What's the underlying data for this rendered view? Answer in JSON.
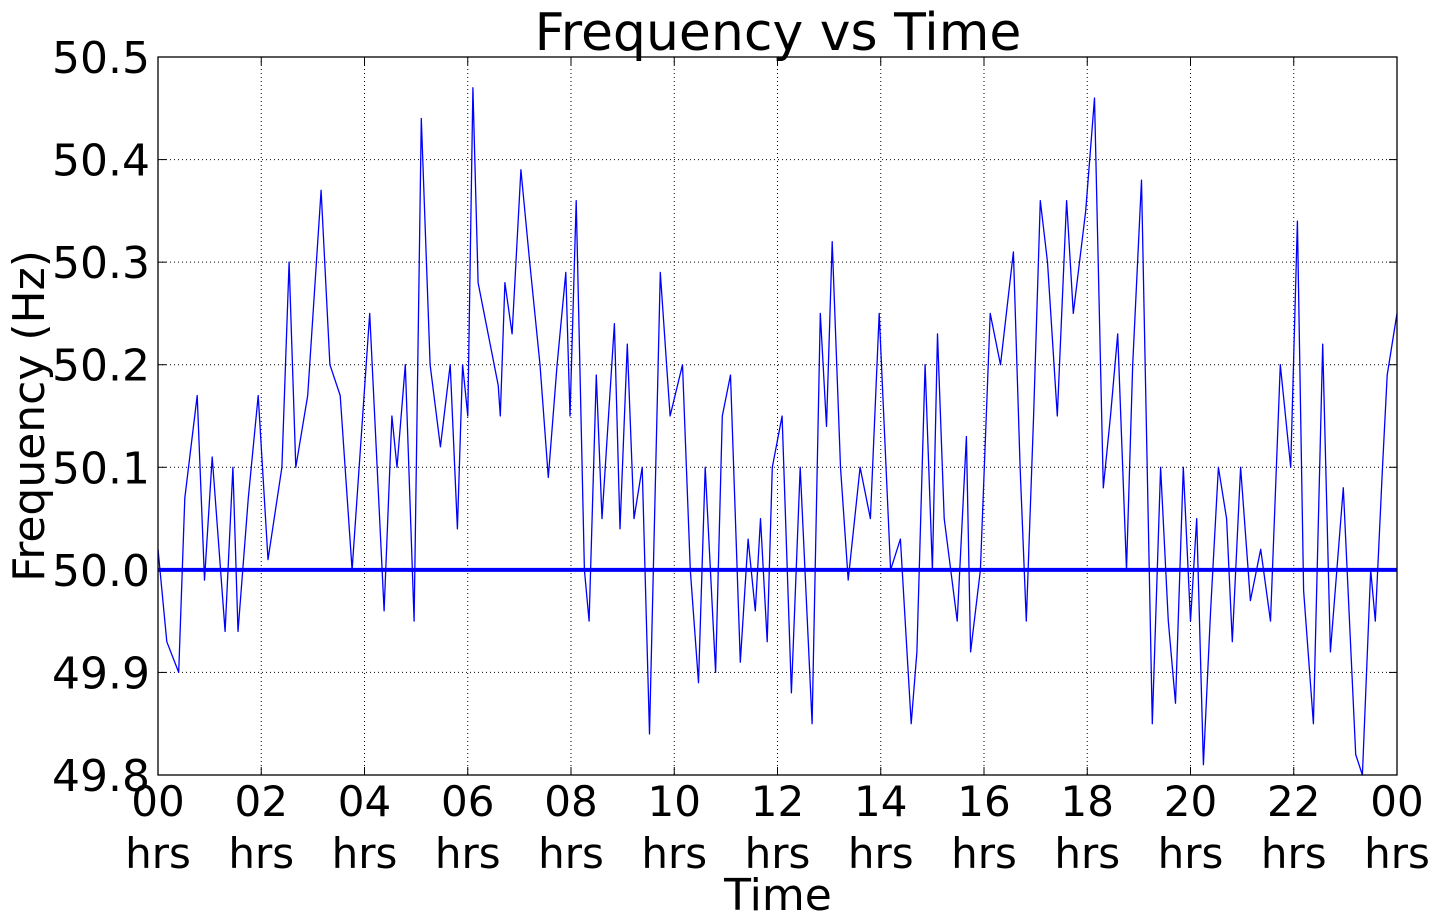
{
  "chart_data": {
    "type": "line",
    "title": "Frequency vs Time",
    "x_label": "Time",
    "y_label": "Frequency (Hz)",
    "color": "#0000ff",
    "grid": true,
    "reference_line": {
      "value": 50,
      "color": "#0000ff"
    },
    "xlim": [
      0,
      24
    ],
    "xticks": [
      {
        "value": 0,
        "label": "00 hrs"
      },
      {
        "value": 2,
        "label": "02 hrs"
      },
      {
        "value": 4,
        "label": "04 hrs"
      },
      {
        "value": 6,
        "label": "06 hrs"
      },
      {
        "value": 8,
        "label": "08 hrs"
      },
      {
        "value": 10,
        "label": "10 hrs"
      },
      {
        "value": 12,
        "label": "12 hrs"
      },
      {
        "value": 14,
        "label": "14 hrs"
      },
      {
        "value": 16,
        "label": "16 hrs"
      },
      {
        "value": 18,
        "label": "18 hrs"
      },
      {
        "value": 20,
        "label": "20 hrs"
      },
      {
        "value": 22,
        "label": "22 hrs"
      },
      {
        "value": 24,
        "label": "00 hrs"
      }
    ],
    "ylim": [
      49.8,
      50.5
    ],
    "yticks": [
      49.8,
      49.9,
      {
        "value": 50,
        "label": "50.0"
      },
      50.1,
      50.2,
      50.3,
      50.4,
      50.5
    ],
    "x": [
      0,
      0.17,
      0.4,
      0.52,
      0.76,
      0.9,
      1.05,
      1.3,
      1.45,
      1.55,
      1.75,
      1.94,
      2.13,
      2.4,
      2.54,
      2.67,
      2.9,
      3.16,
      3.33,
      3.53,
      3.76,
      4.1,
      4.38,
      4.53,
      4.63,
      4.79,
      4.96,
      5.1,
      5.27,
      5.47,
      5.66,
      5.8,
      5.9,
      6.0,
      6.1,
      6.2,
      6.59,
      6.63,
      6.72,
      6.86,
      7.03,
      7.2,
      7.4,
      7.56,
      7.73,
      7.9,
      7.98,
      8.1,
      8.26,
      8.35,
      8.49,
      8.6,
      8.84,
      8.95,
      9.09,
      9.22,
      9.38,
      9.52,
      9.73,
      9.92,
      10.16,
      10.31,
      10.47,
      10.6,
      10.8,
      10.93,
      11.09,
      11.28,
      11.43,
      11.57,
      11.67,
      11.8,
      11.9,
      12.09,
      12.27,
      12.44,
      12.67,
      12.83,
      12.95,
      13.06,
      13.22,
      13.37,
      13.6,
      13.8,
      13.97,
      14.19,
      14.38,
      14.59,
      14.7,
      14.86,
      15.0,
      15.1,
      15.23,
      15.48,
      15.66,
      15.74,
      15.93,
      16.12,
      16.32,
      16.57,
      16.7,
      16.82,
      16.96,
      17.09,
      17.23,
      17.42,
      17.6,
      17.73,
      17.97,
      18.14,
      18.31,
      18.45,
      18.59,
      18.76,
      18.88,
      19.05,
      19.26,
      19.42,
      19.57,
      19.71,
      19.86,
      20.0,
      20.12,
      20.25,
      20.39,
      20.54,
      20.7,
      20.81,
      20.97,
      21.16,
      21.36,
      21.55,
      21.74,
      21.94,
      22.07,
      22.19,
      22.38,
      22.56,
      22.71,
      22.96,
      23.2,
      23.33,
      23.49,
      23.58,
      23.72,
      23.81,
      24.0
    ],
    "values": [
      50.02,
      49.93,
      49.9,
      50.07,
      50.17,
      49.99,
      50.11,
      49.94,
      50.1,
      49.94,
      50.07,
      50.17,
      50.01,
      50.1,
      50.3,
      50.1,
      50.17,
      50.37,
      50.2,
      50.17,
      50.0,
      50.25,
      49.96,
      50.15,
      50.1,
      50.2,
      49.95,
      50.44,
      50.2,
      50.12,
      50.2,
      50.04,
      50.2,
      50.15,
      50.47,
      50.28,
      50.18,
      50.15,
      50.28,
      50.23,
      50.39,
      50.3,
      50.2,
      50.09,
      50.2,
      50.29,
      50.15,
      50.36,
      50.0,
      49.95,
      50.19,
      50.05,
      50.24,
      50.04,
      50.22,
      50.05,
      50.1,
      49.84,
      50.29,
      50.15,
      50.2,
      50.0,
      49.89,
      50.1,
      49.9,
      50.15,
      50.19,
      49.91,
      50.03,
      49.96,
      50.05,
      49.93,
      50.1,
      50.15,
      49.88,
      50.1,
      49.85,
      50.25,
      50.14,
      50.32,
      50.1,
      49.99,
      50.1,
      50.05,
      50.25,
      50.0,
      50.03,
      49.85,
      49.92,
      50.2,
      50.0,
      50.23,
      50.05,
      49.95,
      50.13,
      49.92,
      50.0,
      50.25,
      50.2,
      50.31,
      50.1,
      49.95,
      50.15,
      50.36,
      50.3,
      50.15,
      50.36,
      50.25,
      50.35,
      50.46,
      50.08,
      50.15,
      50.23,
      50.0,
      50.2,
      50.38,
      49.85,
      50.1,
      49.95,
      49.87,
      50.1,
      49.95,
      50.05,
      49.81,
      49.96,
      50.1,
      50.05,
      49.93,
      50.1,
      49.97,
      50.02,
      49.95,
      50.2,
      50.1,
      50.34,
      49.98,
      49.85,
      50.22,
      49.92,
      50.08,
      49.82,
      49.8,
      50.0,
      49.95,
      50.1,
      50.19,
      50.25
    ]
  }
}
